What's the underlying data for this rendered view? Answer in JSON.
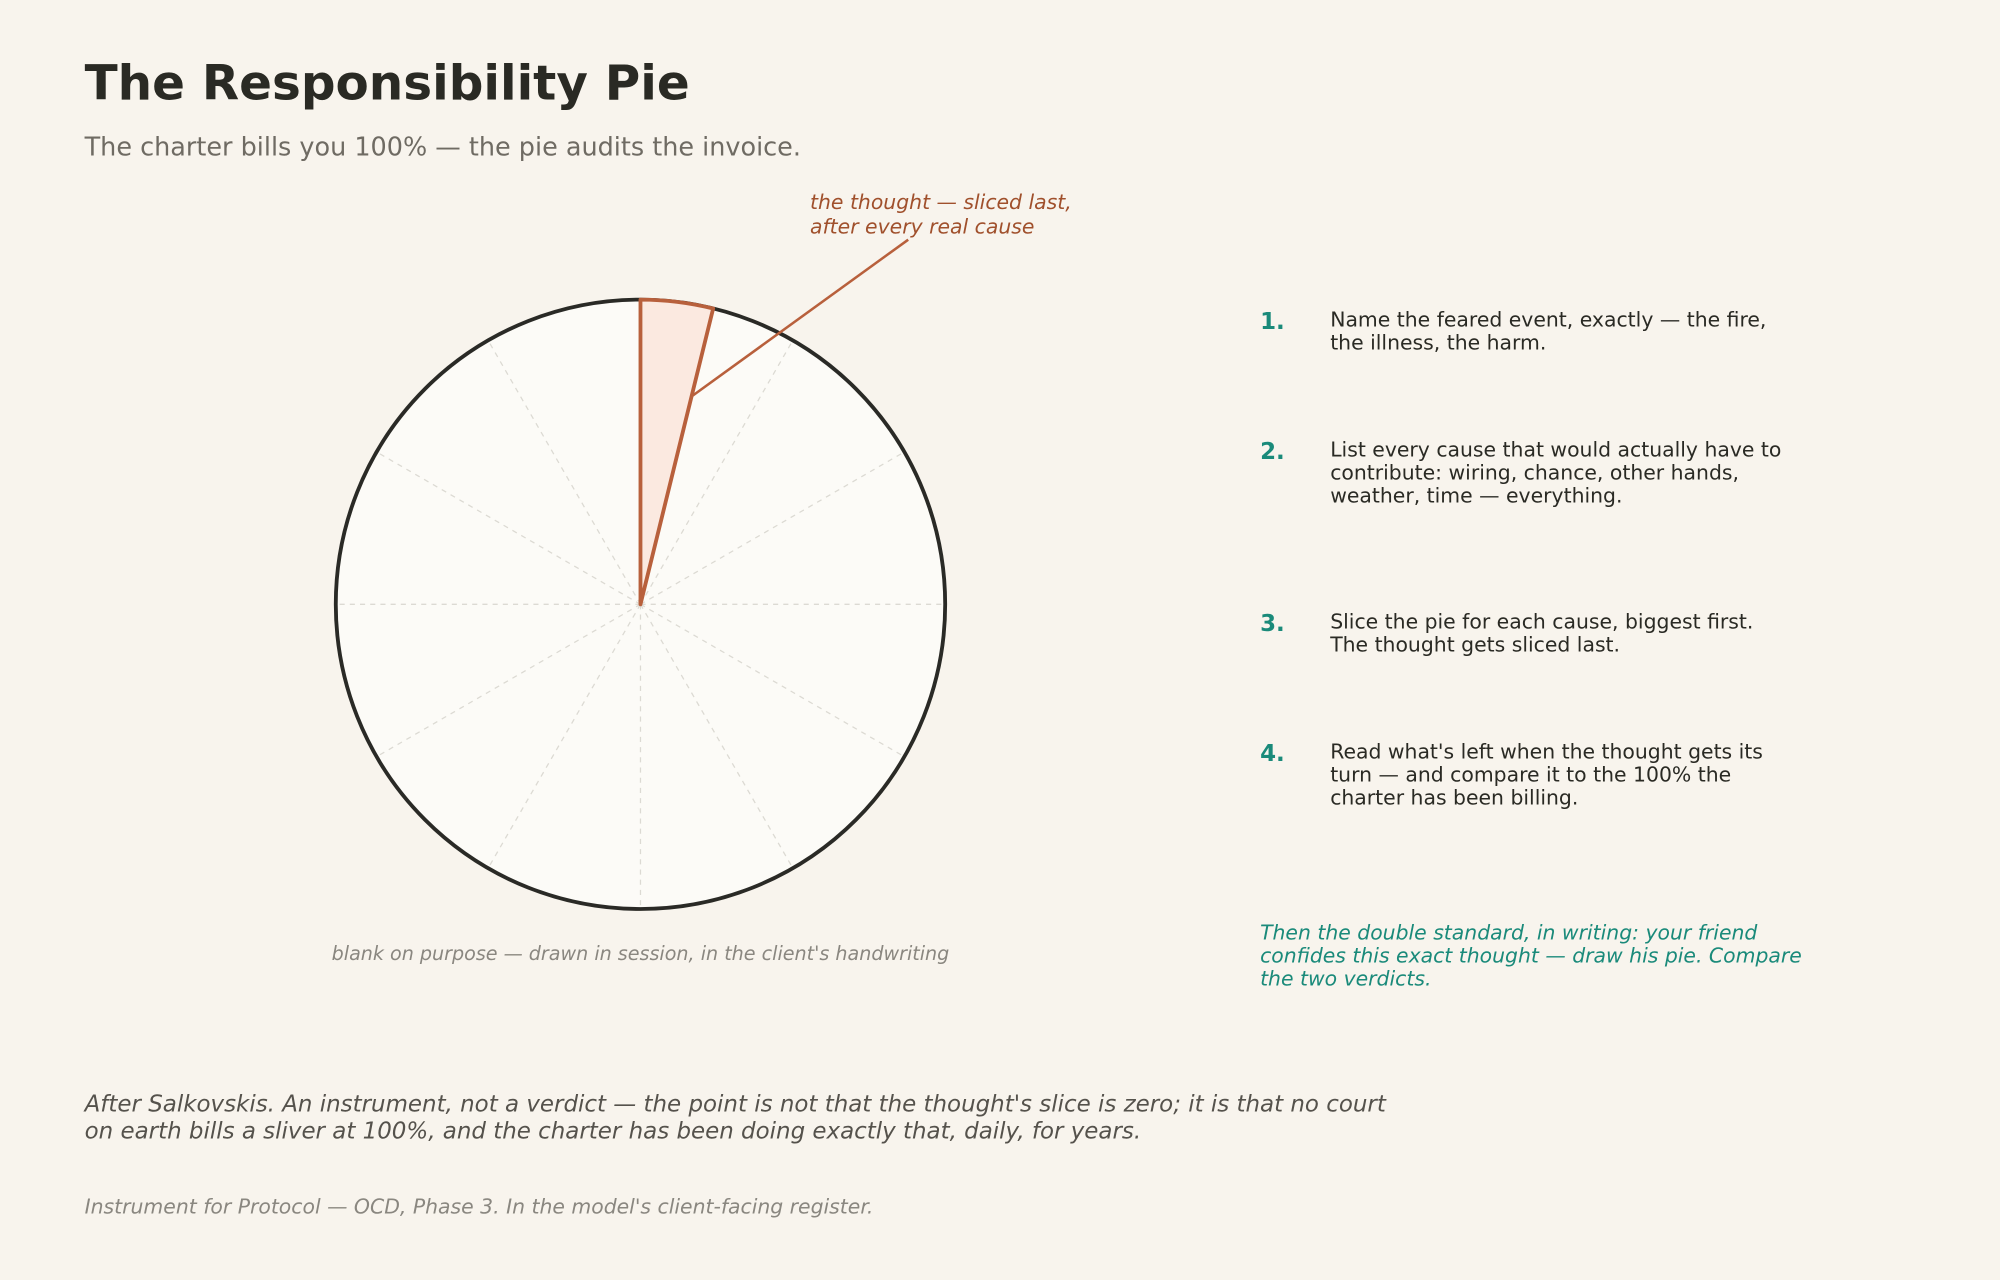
{
  "header": {
    "title": "The Responsibility Pie",
    "subtitle": "The charter bills you 100% — the pie audits the invoice."
  },
  "pie": {
    "annotation": [
      "the thought — sliced last,",
      "after every real cause"
    ],
    "caption": "blank on purpose — drawn in session, in the client's handwriting"
  },
  "steps": [
    {
      "number": "1.",
      "lines": [
        "Name the feared event, exactly — the fire,",
        "the illness, the harm."
      ]
    },
    {
      "number": "2.",
      "lines": [
        "List every cause that would actually have to",
        "contribute: wiring, chance, other hands,",
        "weather, time — everything."
      ]
    },
    {
      "number": "3.",
      "lines": [
        "Slice the pie for each cause, biggest first.",
        "The thought gets sliced last."
      ]
    },
    {
      "number": "4.",
      "lines": [
        "Read what's left when the thought gets its",
        "turn — and compare it to the 100% the",
        "charter has been billing."
      ]
    }
  ],
  "closing": [
    "Then the double standard, in writing: your friend",
    "confides this exact thought — draw his pie. Compare",
    "the two verdicts."
  ],
  "footnote": [
    "After Salkovskis. An instrument, not a verdict — the point is not that the thought's slice is zero; it is that no court",
    "on earth bills a sliver at 100%, and the charter has been doing exactly that, daily, for years."
  ],
  "credit": "Instrument for Protocol — OCD, Phase 3. In the model's client-facing register."
}
